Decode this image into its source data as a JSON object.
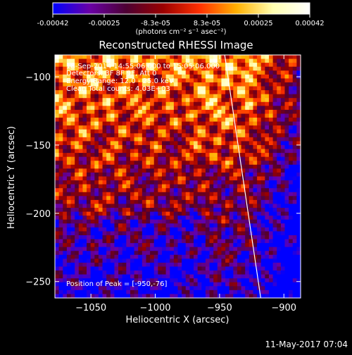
{
  "colorbar": {
    "tick_labels": [
      "-0.00042",
      "-0.00025",
      "-8.3e-05",
      "8.3e-05",
      "0.00025",
      "0.00042"
    ],
    "unit_label": "(photons cm⁻² s⁻¹ asec⁻²)",
    "stops": [
      "#0000ff",
      "#6a00a6",
      "#4d0033",
      "#9a0000",
      "#ff3000",
      "#ffb000",
      "#ffffb0",
      "#ffffff"
    ]
  },
  "chart_data": {
    "type": "heatmap",
    "title": "Reconstructed RHESSI Image",
    "xlabel": "Heliocentric X (arcsec)",
    "ylabel": "Heliocentric Y (arcsec)",
    "xlim": [
      -1078,
      -887
    ],
    "ylim": [
      -262,
      -84
    ],
    "x_ticks": [
      -1050,
      -1000,
      -950,
      -900
    ],
    "x_tick_labels": [
      "−1050",
      "−1000",
      "−950",
      "−900"
    ],
    "y_ticks": [
      -100,
      -150,
      -200,
      -250
    ],
    "y_tick_labels": [
      "−100",
      "−150",
      "−200",
      "−250"
    ],
    "vmin": -0.00042,
    "vmax": 0.00042,
    "annotations": [
      "18-Sep-2014 14:55:06.000 to 15:05:06.000",
      "Detectors: 3F 8F 9F, Att 0",
      "Energy Range: 12.0 - 25.0 keV",
      "Clean    Total counts: 4.03E+03"
    ],
    "peak_label": "Position of Peak = [-950,-76]",
    "limb_line": [
      [
        -946,
        -84
      ],
      [
        -918,
        -262
      ]
    ]
  },
  "timestamp": "11-May-2017 07:04"
}
